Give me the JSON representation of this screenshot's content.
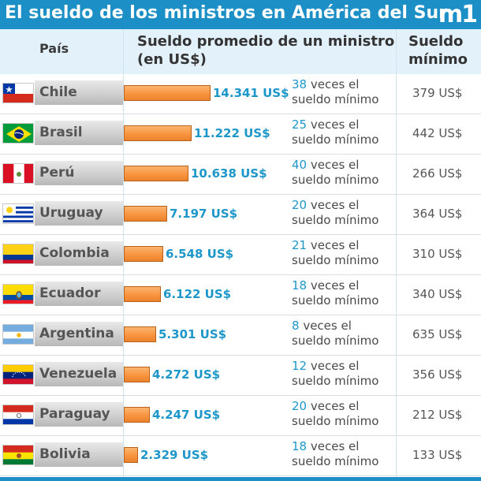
{
  "header": {
    "title": "El sueldo de los ministros en América del Sur",
    "logo": "m1",
    "col_pais": "País",
    "col_sueldo_line1": "Sueldo promedio de un ministro",
    "col_sueldo_line2": "(en US$)",
    "col_min_line1": "Sueldo",
    "col_min_line2": "mínimo"
  },
  "colors": {
    "title_bar": "#1b8fc6",
    "header_bg": "#e3f1fa",
    "bar": "#f7923d",
    "value_text": "#1d97c9"
  },
  "chart_data": {
    "type": "bar",
    "orientation": "horizontal",
    "title": "El sueldo de los ministros en América del Sur",
    "categories": [
      "Chile",
      "Brasil",
      "Perú",
      "Uruguay",
      "Colombia",
      "Ecuador",
      "Argentina",
      "Venezuela",
      "Paraguay",
      "Bolivia"
    ],
    "values": [
      14341,
      11222,
      10638,
      7197,
      6548,
      6122,
      5301,
      4272,
      4247,
      2329
    ],
    "xlim": [
      0,
      14341
    ],
    "grid": false,
    "rows": [
      {
        "pais": "Chile",
        "flag": "chile-flag",
        "sueldo": 14341,
        "sueldo_label": "14.341 US$",
        "veces_num": "38",
        "veces_text1": " veces el",
        "veces_text2": "sueldo mínimo",
        "minimo": "379 US$"
      },
      {
        "pais": "Brasil",
        "flag": "brazil-flag",
        "sueldo": 11222,
        "sueldo_label": "11.222 US$",
        "veces_num": "25",
        "veces_text1": " veces el",
        "veces_text2": "sueldo mínimo",
        "minimo": "442 US$"
      },
      {
        "pais": "Perú",
        "flag": "peru-flag",
        "sueldo": 10638,
        "sueldo_label": "10.638 US$",
        "veces_num": "40",
        "veces_text1": " veces el",
        "veces_text2": "sueldo mínimo",
        "minimo": "266 US$"
      },
      {
        "pais": "Uruguay",
        "flag": "uruguay-flag",
        "sueldo": 7197,
        "sueldo_label": "7.197 US$",
        "veces_num": "20",
        "veces_text1": " veces el",
        "veces_text2": "sueldo mínimo",
        "minimo": "364 US$"
      },
      {
        "pais": "Colombia",
        "flag": "colombia-flag",
        "sueldo": 6548,
        "sueldo_label": "6.548 US$",
        "veces_num": "21",
        "veces_text1": " veces el",
        "veces_text2": "sueldo mínimo",
        "minimo": "310 US$"
      },
      {
        "pais": "Ecuador",
        "flag": "ecuador-flag",
        "sueldo": 6122,
        "sueldo_label": "6.122 US$",
        "veces_num": "18",
        "veces_text1": " veces el",
        "veces_text2": "sueldo mínimo",
        "minimo": "340 US$"
      },
      {
        "pais": "Argentina",
        "flag": "argentina-flag",
        "sueldo": 5301,
        "sueldo_label": "5.301 US$",
        "veces_num": "8",
        "veces_text1": " veces el",
        "veces_text2": "sueldo mínimo",
        "minimo": "635 US$"
      },
      {
        "pais": "Venezuela",
        "flag": "venezuela-flag",
        "sueldo": 4272,
        "sueldo_label": "4.272 US$",
        "veces_num": "12",
        "veces_text1": " veces el",
        "veces_text2": "sueldo mínimo",
        "minimo": "356 US$"
      },
      {
        "pais": "Paraguay",
        "flag": "paraguay-flag",
        "sueldo": 4247,
        "sueldo_label": "4.247 US$",
        "veces_num": "20",
        "veces_text1": " veces el",
        "veces_text2": "sueldo mínimo",
        "minimo": "212 US$"
      },
      {
        "pais": "Bolivia",
        "flag": "bolivia-flag",
        "sueldo": 2329,
        "sueldo_label": "2.329 US$",
        "veces_num": "18",
        "veces_text1": " veces el",
        "veces_text2": "sueldo mínimo",
        "minimo": "133 US$"
      }
    ]
  }
}
